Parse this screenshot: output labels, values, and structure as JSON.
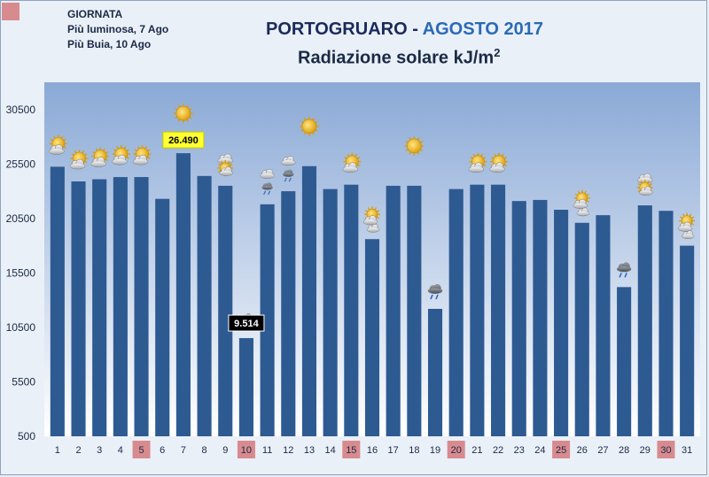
{
  "header": {
    "legend_title": "GIORNATA",
    "legend_brightest": "Più luminosa, 7 Ago",
    "legend_darkest": "Più Buia, 10 Ago",
    "title_place": "PORTOGRUARO - ",
    "title_month": "AGOSTO 2017",
    "subtitle_main": "Radiazione solare kJ/m",
    "subtitle_sup": "2"
  },
  "colors": {
    "bar": "#2e5a92",
    "highlight": "#d88b8f",
    "callout_max_bg": "#ffff33",
    "callout_min_bg": "#000000"
  },
  "chart_data": {
    "type": "bar",
    "title": "PORTOGRUARO - AGOSTO 2017",
    "subtitle": "Radiazione solare kJ/m²",
    "xlabel": "",
    "ylabel": "",
    "ylim": [
      500,
      33000
    ],
    "yticks": [
      500,
      5500,
      10500,
      15500,
      20500,
      25500,
      30500
    ],
    "yticklabels": [
      "500",
      "5500",
      "10500",
      "15500",
      "20500",
      "25500",
      "30500"
    ],
    "categories": [
      "1",
      "2",
      "3",
      "4",
      "5",
      "6",
      "7",
      "8",
      "9",
      "10",
      "11",
      "12",
      "13",
      "14",
      "15",
      "16",
      "17",
      "18",
      "19",
      "20",
      "21",
      "22",
      "23",
      "24",
      "25",
      "26",
      "27",
      "28",
      "29",
      "30",
      "31"
    ],
    "values": [
      25250,
      23900,
      24100,
      24300,
      24300,
      22300,
      26490,
      24400,
      23500,
      9514,
      21800,
      23000,
      25300,
      23200,
      23600,
      18600,
      23500,
      23500,
      12200,
      23200,
      23600,
      23600,
      22100,
      22200,
      21300,
      20100,
      20800,
      14200,
      21700,
      21200,
      18000
    ],
    "highlighted_days": [
      "5",
      "10",
      "15",
      "20",
      "25",
      "30"
    ],
    "weather_icons": [
      "partly-sunny-icon",
      "partly-sunny-icon",
      "partly-sunny-icon",
      "partly-sunny-icon",
      "partly-sunny-icon",
      "",
      "sun-icon",
      "",
      "cloudy-icon",
      "storm-cloud-icon",
      "cloud-rain-icon",
      "cloud-rain-icon",
      "sun-icon",
      "",
      "partly-sunny-icon",
      "partly-cloudy-icon",
      "",
      "sun-icon",
      "storm-cloud-icon",
      "",
      "partly-sunny-icon",
      "partly-sunny-icon",
      "",
      "",
      "",
      "partly-cloudy-icon",
      "",
      "storm-cloud-icon",
      "cloudy-icon",
      "",
      "partly-cloudy-icon"
    ],
    "annotations": [
      {
        "day": "7",
        "text": "26.490",
        "style": "max"
      },
      {
        "day": "10",
        "text": "9.514",
        "style": "min"
      }
    ],
    "grid": false,
    "legend": "none"
  }
}
